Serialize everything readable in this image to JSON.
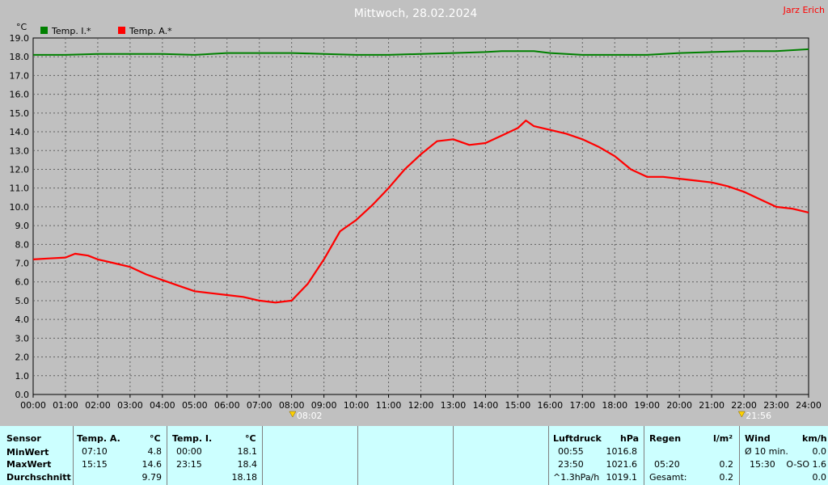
{
  "header": {
    "title": "Mittwoch, 28.02.2024",
    "author": "Jarz Erich"
  },
  "chart_data": {
    "type": "line",
    "ylabel": "°C",
    "ylim": [
      0,
      19
    ],
    "y_ticks": [
      "0.0",
      "1.0",
      "2.0",
      "3.0",
      "4.0",
      "5.0",
      "6.0",
      "7.0",
      "8.0",
      "9.0",
      "10.0",
      "11.0",
      "12.0",
      "13.0",
      "14.0",
      "15.0",
      "16.0",
      "17.0",
      "18.0",
      "19.0"
    ],
    "x_ticks": [
      "00:00",
      "01:00",
      "02:00",
      "03:00",
      "04:00",
      "05:00",
      "06:00",
      "07:00",
      "08:00",
      "09:00",
      "10:00",
      "11:00",
      "12:00",
      "13:00",
      "14:00",
      "15:00",
      "16:00",
      "17:00",
      "18:00",
      "19:00",
      "20:00",
      "21:00",
      "22:00",
      "23:00",
      "24:00"
    ],
    "grid": true,
    "legend": "top-left",
    "series": [
      {
        "name": "Temp. I.*",
        "color": "#008000",
        "x": [
          0,
          1,
          2,
          3,
          4,
          5,
          6,
          7,
          8,
          9,
          10,
          11,
          12,
          13,
          14,
          14.5,
          15,
          15.5,
          16,
          17,
          18,
          19,
          19.5,
          20,
          21,
          22,
          23,
          24
        ],
        "y": [
          18.1,
          18.1,
          18.15,
          18.15,
          18.15,
          18.1,
          18.2,
          18.2,
          18.2,
          18.15,
          18.1,
          18.1,
          18.15,
          18.2,
          18.25,
          18.3,
          18.3,
          18.3,
          18.2,
          18.1,
          18.1,
          18.1,
          18.15,
          18.2,
          18.25,
          18.3,
          18.3,
          18.4
        ]
      },
      {
        "name": "Temp. A.*",
        "color": "#ff0000",
        "x": [
          0,
          0.5,
          1,
          1.3,
          1.7,
          2,
          2.5,
          3,
          3.5,
          4,
          4.5,
          5,
          5.5,
          6,
          6.5,
          7,
          7.5,
          8,
          8.5,
          9,
          9.5,
          10,
          10.5,
          11,
          11.5,
          12,
          12.5,
          13,
          13.5,
          14,
          14.5,
          15,
          15.25,
          15.5,
          16,
          16.5,
          17,
          17.5,
          18,
          18.5,
          19,
          19.5,
          20,
          20.5,
          21,
          21.5,
          22,
          22.5,
          23,
          23.5,
          24
        ],
        "y": [
          7.2,
          7.25,
          7.3,
          7.5,
          7.4,
          7.2,
          7.0,
          6.8,
          6.4,
          6.1,
          5.8,
          5.5,
          5.4,
          5.3,
          5.2,
          5.0,
          4.9,
          5.0,
          5.9,
          7.2,
          8.7,
          9.3,
          10.1,
          11.0,
          12.0,
          12.8,
          13.5,
          13.6,
          13.3,
          13.4,
          13.8,
          14.2,
          14.6,
          14.3,
          14.1,
          13.9,
          13.6,
          13.2,
          12.7,
          12.0,
          11.6,
          11.6,
          11.5,
          11.4,
          11.3,
          11.1,
          10.8,
          10.4,
          10.0,
          9.9,
          9.7
        ]
      }
    ],
    "annotations": [
      {
        "time": "08:02",
        "hour": 8.03,
        "icon": "sunrise-icon"
      },
      {
        "time": "21:56",
        "hour": 21.93,
        "icon": "sunset-icon"
      }
    ]
  },
  "table": {
    "sensor": {
      "label": "Sensor",
      "min": "MinWert",
      "max": "MaxWert",
      "avg": "Durchschnitt"
    },
    "temp_a": {
      "header": "Temp. A.",
      "unit": "°C",
      "min_time": "07:10",
      "min_val": "4.8",
      "max_time": "15:15",
      "max_val": "14.6",
      "avg": "9.79"
    },
    "temp_i": {
      "header": "Temp. I.",
      "unit": "°C",
      "min_time": "00:00",
      "min_val": "18.1",
      "max_time": "23:15",
      "max_val": "18.4",
      "avg": "18.18"
    },
    "pressure": {
      "header": "Luftdruck",
      "unit": "hPa",
      "min_time": "00:55",
      "min_val": "1016.8",
      "max_time": "23:50",
      "max_val": "1021.6",
      "trend": "^1.3hPa/h",
      "avg": "1019.1"
    },
    "rain": {
      "header": "Regen",
      "unit": "l/m²",
      "max_time": "05:20",
      "max_val": "0.2",
      "total_label": "Gesamt:",
      "total": "0.2"
    },
    "wind": {
      "header": "Wind",
      "unit": "km/h",
      "avg_label": "Ø 10 min.",
      "avg_val": "0.0",
      "max_time": "15:30",
      "max_val": "O-SO 1.6",
      "day_avg": "0.0"
    }
  }
}
